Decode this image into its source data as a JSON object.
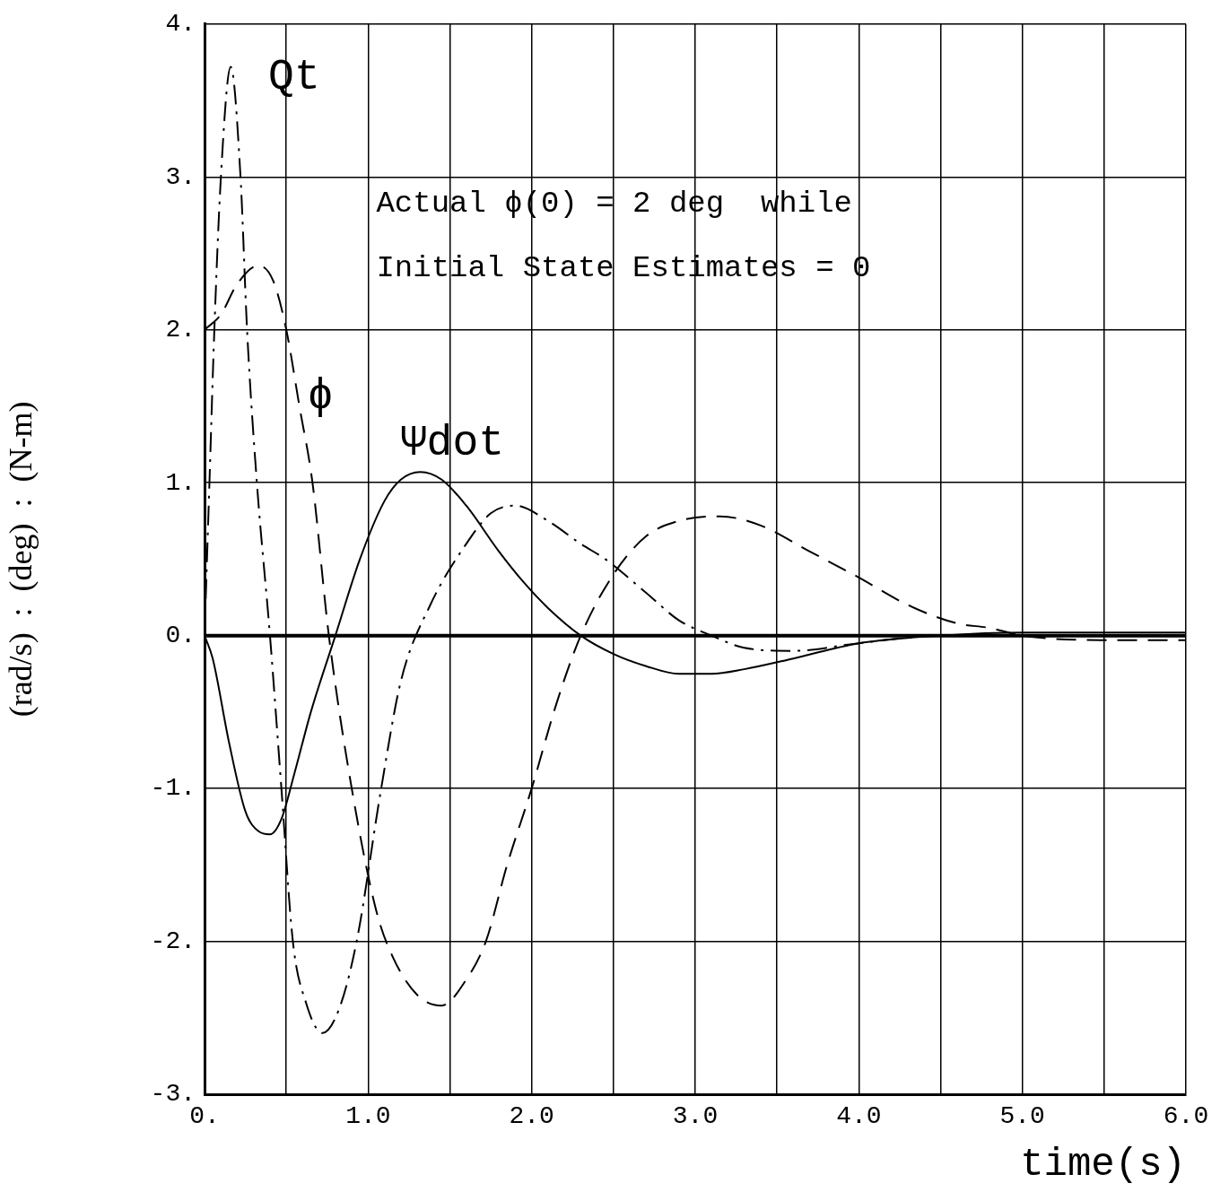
{
  "chart_data": {
    "type": "line",
    "xlabel": "time(s)",
    "ylabel": "(rad/s)  :  (deg)  :  (N-m)",
    "xlim": [
      0,
      6
    ],
    "ylim": [
      -3,
      4
    ],
    "xticks": [
      {
        "value": 0,
        "label": "0."
      },
      {
        "value": 0.5,
        "label": null
      },
      {
        "value": 1,
        "label": "1.0"
      },
      {
        "value": 1.5,
        "label": null
      },
      {
        "value": 2,
        "label": "2.0"
      },
      {
        "value": 2.5,
        "label": null
      },
      {
        "value": 3,
        "label": "3.0"
      },
      {
        "value": 3.5,
        "label": null
      },
      {
        "value": 4,
        "label": "4.0"
      },
      {
        "value": 4.5,
        "label": null
      },
      {
        "value": 5,
        "label": "5.0"
      },
      {
        "value": 5.5,
        "label": null
      },
      {
        "value": 6,
        "label": "6.0"
      }
    ],
    "yticks": [
      {
        "value": -3,
        "label": "-3."
      },
      {
        "value": -2,
        "label": "-2."
      },
      {
        "value": -1,
        "label": "-1."
      },
      {
        "value": 0,
        "label": "0."
      },
      {
        "value": 1,
        "label": "1."
      },
      {
        "value": 2,
        "label": "2."
      },
      {
        "value": 3,
        "label": "3."
      },
      {
        "value": 4,
        "label": "4."
      }
    ],
    "grid": true,
    "marker": "none",
    "ref_lines": [
      {
        "axis": "y",
        "value": 0
      }
    ],
    "series": [
      {
        "color": "#000000",
        "line_style": "solid",
        "x": [
          0,
          0.05,
          0.15,
          0.25,
          0.33,
          0.4,
          0.47,
          0.55,
          0.65,
          0.8,
          0.95,
          1.1,
          1.2,
          1.32,
          1.45,
          1.6,
          1.8,
          1.95,
          2.1,
          2.3,
          2.5,
          2.7,
          2.9,
          3.1,
          3.3,
          3.6,
          4.0,
          4.5,
          5.0,
          5.5,
          6.0
        ],
        "values": [
          0,
          -0.15,
          -0.7,
          -1.15,
          -1.28,
          -1.3,
          -1.2,
          -0.9,
          -0.5,
          0,
          0.5,
          0.88,
          1.02,
          1.07,
          1.02,
          0.85,
          0.55,
          0.35,
          0.18,
          0,
          -0.12,
          -0.2,
          -0.25,
          -0.25,
          -0.22,
          -0.15,
          -0.05,
          0,
          0.02,
          0.02,
          0.02
        ]
      },
      {
        "color": "#000000",
        "line_style": "dashed",
        "x": [
          0,
          0.1,
          0.2,
          0.33,
          0.42,
          0.5,
          0.58,
          0.66,
          0.76,
          0.9,
          1.05,
          1.15,
          1.3,
          1.45,
          1.6,
          1.72,
          1.85,
          2.0,
          2.15,
          2.3,
          2.5,
          2.7,
          2.9,
          3.15,
          3.4,
          3.7,
          4.0,
          4.3,
          4.6,
          4.8,
          5.0,
          5.5,
          6.0
        ],
        "values": [
          2.0,
          2.1,
          2.3,
          2.42,
          2.32,
          2.0,
          1.5,
          1.0,
          0,
          -1.0,
          -1.8,
          -2.1,
          -2.35,
          -2.42,
          -2.25,
          -2.0,
          -1.5,
          -1.0,
          -0.45,
          0,
          0.4,
          0.65,
          0.75,
          0.78,
          0.72,
          0.55,
          0.38,
          0.2,
          0.08,
          0.05,
          0,
          -0.03,
          -0.03
        ]
      },
      {
        "color": "#000000",
        "line_style": "dashdot",
        "x": [
          0,
          0.03,
          0.06,
          0.1,
          0.16,
          0.22,
          0.26,
          0.32,
          0.4,
          0.47,
          0.54,
          0.62,
          0.72,
          0.82,
          0.93,
          1.08,
          1.2,
          1.38,
          1.6,
          1.75,
          1.9,
          2.1,
          2.3,
          2.45,
          2.7,
          2.9,
          3.1,
          3.3,
          3.6,
          4.0,
          4.5,
          5.0,
          5.5,
          6.0
        ],
        "values": [
          0,
          1.0,
          2.0,
          3.0,
          3.72,
          3.0,
          2.0,
          1.0,
          0,
          -1.0,
          -2.0,
          -2.4,
          -2.6,
          -2.45,
          -2.0,
          -1.0,
          -0.3,
          0.2,
          0.6,
          0.8,
          0.85,
          0.75,
          0.6,
          0.5,
          0.28,
          0.1,
          0,
          -0.08,
          -0.1,
          -0.05,
          0,
          0,
          0,
          0
        ]
      }
    ],
    "annotations": [
      "Qt",
      "ϕ",
      "Ψdot",
      "Actual ϕ(0) = 2 deg  while",
      "Initial State Estimates = 0"
    ]
  }
}
